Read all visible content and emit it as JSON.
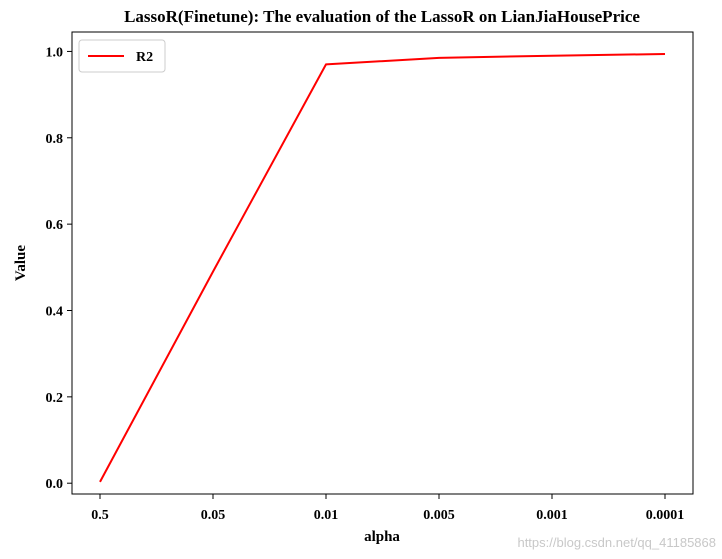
{
  "chart_data": {
    "type": "line",
    "title": "LassoR(Finetune): The evaluation of the LassoR on LianJiaHousePrice",
    "xlabel": "alpha",
    "ylabel": "Value",
    "categories": [
      "0.5",
      "0.05",
      "0.01",
      "0.005",
      "0.001",
      "0.0001"
    ],
    "yticks": [
      "0.0",
      "0.2",
      "0.4",
      "0.6",
      "0.8",
      "1.0"
    ],
    "ylim": [
      -0.025,
      1.045
    ],
    "series": [
      {
        "name": "R2",
        "color": "#ff0000",
        "values": [
          0.003,
          0.49,
          0.97,
          0.985,
          0.99,
          0.994
        ]
      }
    ],
    "legend_position": "top-left",
    "grid": false
  },
  "watermark": "https://blog.csdn.net/qq_41185868"
}
